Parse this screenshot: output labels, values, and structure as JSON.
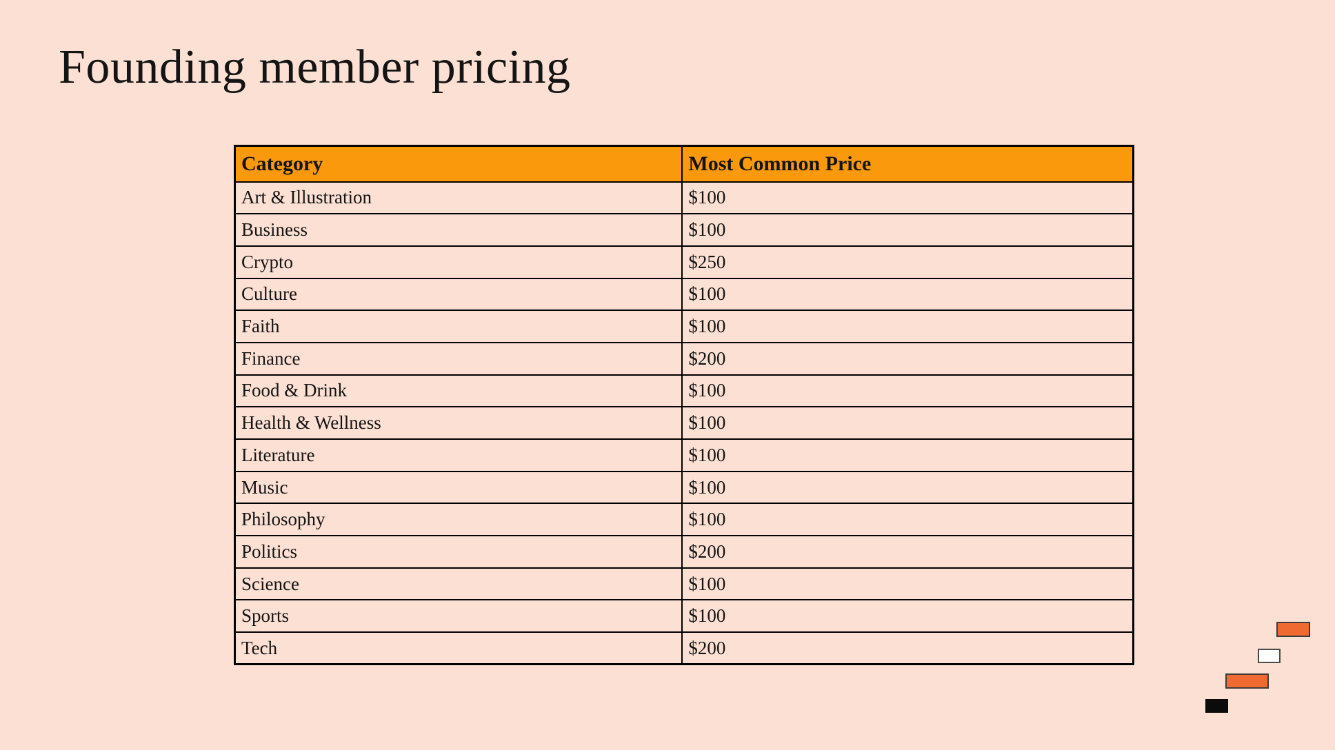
{
  "slide": {
    "title": "Founding member pricing"
  },
  "table": {
    "columns": [
      "Category",
      "Most Common Price"
    ],
    "rows": [
      {
        "category": "Art & Illustration",
        "price": "$100"
      },
      {
        "category": "Business",
        "price": "$100"
      },
      {
        "category": "Crypto",
        "price": "$250"
      },
      {
        "category": "Culture",
        "price": "$100"
      },
      {
        "category": "Faith",
        "price": "$100"
      },
      {
        "category": "Finance",
        "price": "$200"
      },
      {
        "category": "Food & Drink",
        "price": "$100"
      },
      {
        "category": "Health & Wellness",
        "price": "$100"
      },
      {
        "category": "Literature",
        "price": "$100"
      },
      {
        "category": "Music",
        "price": "$100"
      },
      {
        "category": "Philosophy",
        "price": "$100"
      },
      {
        "category": "Politics",
        "price": "$200"
      },
      {
        "category": "Science",
        "price": "$100"
      },
      {
        "category": "Sports",
        "price": "$100"
      },
      {
        "category": "Tech",
        "price": "$200"
      }
    ]
  },
  "colors": {
    "background": "#FCE0D4",
    "header_bg": "#F9990B",
    "table_border": "#000000",
    "text": "#141414",
    "accent_orange": "#EE6A31",
    "deco_white": "#FFFFFF",
    "deco_black": "#0B0B0B"
  },
  "decorations": [
    {
      "name": "deco-rect-orange-top",
      "color": "#EE6A31"
    },
    {
      "name": "deco-rect-white",
      "color": "#FFFFFF"
    },
    {
      "name": "deco-rect-orange-middle",
      "color": "#EE6A31"
    },
    {
      "name": "deco-rect-black",
      "color": "#0B0B0B"
    }
  ]
}
